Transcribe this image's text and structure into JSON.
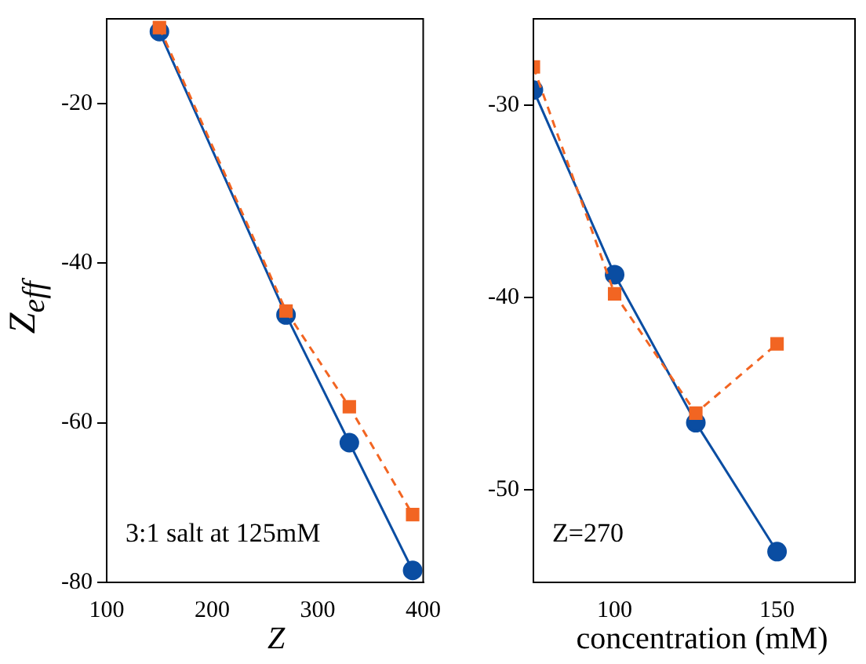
{
  "chart_data": [
    {
      "type": "line",
      "ylabel": "Z$_{eff}$",
      "xlabel": "Z",
      "x": [
        150,
        270,
        330,
        390
      ],
      "xlim": [
        100,
        400
      ],
      "xticks": [
        100,
        200,
        300,
        400
      ],
      "ylim": [
        -80,
        -9.4
      ],
      "yticks": [
        -80,
        -60,
        -40,
        -20
      ],
      "annotations": [
        "3:1 salt at 125mM"
      ],
      "series": [
        {
          "color": "#0a4da2",
          "values": [
            -11,
            -46.5,
            -62.5,
            -78.5
          ],
          "marker": "circle",
          "line_style": "solid"
        },
        {
          "color": "#f26522",
          "values": [
            -10.5,
            -46,
            -58,
            -71.5
          ],
          "marker": "square",
          "line_style": "dashed"
        }
      ]
    },
    {
      "type": "line",
      "xlabel": "concentration (mM)",
      "x": [
        75,
        100,
        125,
        150
      ],
      "xlim": [
        75,
        174
      ],
      "xticks": [
        100,
        150
      ],
      "ylim": [
        -54.8,
        -25.5
      ],
      "yticks": [
        -50,
        -40,
        -30
      ],
      "annotations": [
        "Z=270"
      ],
      "series": [
        {
          "color": "#0a4da2",
          "values": [
            -29.2,
            -38.8,
            -46.5,
            -53.2
          ],
          "marker": "circle",
          "line_style": "solid"
        },
        {
          "color": "#f26522",
          "values": [
            -28,
            -39.8,
            -46,
            -42.4
          ],
          "marker": "square",
          "line_style": "dashed"
        }
      ]
    }
  ]
}
